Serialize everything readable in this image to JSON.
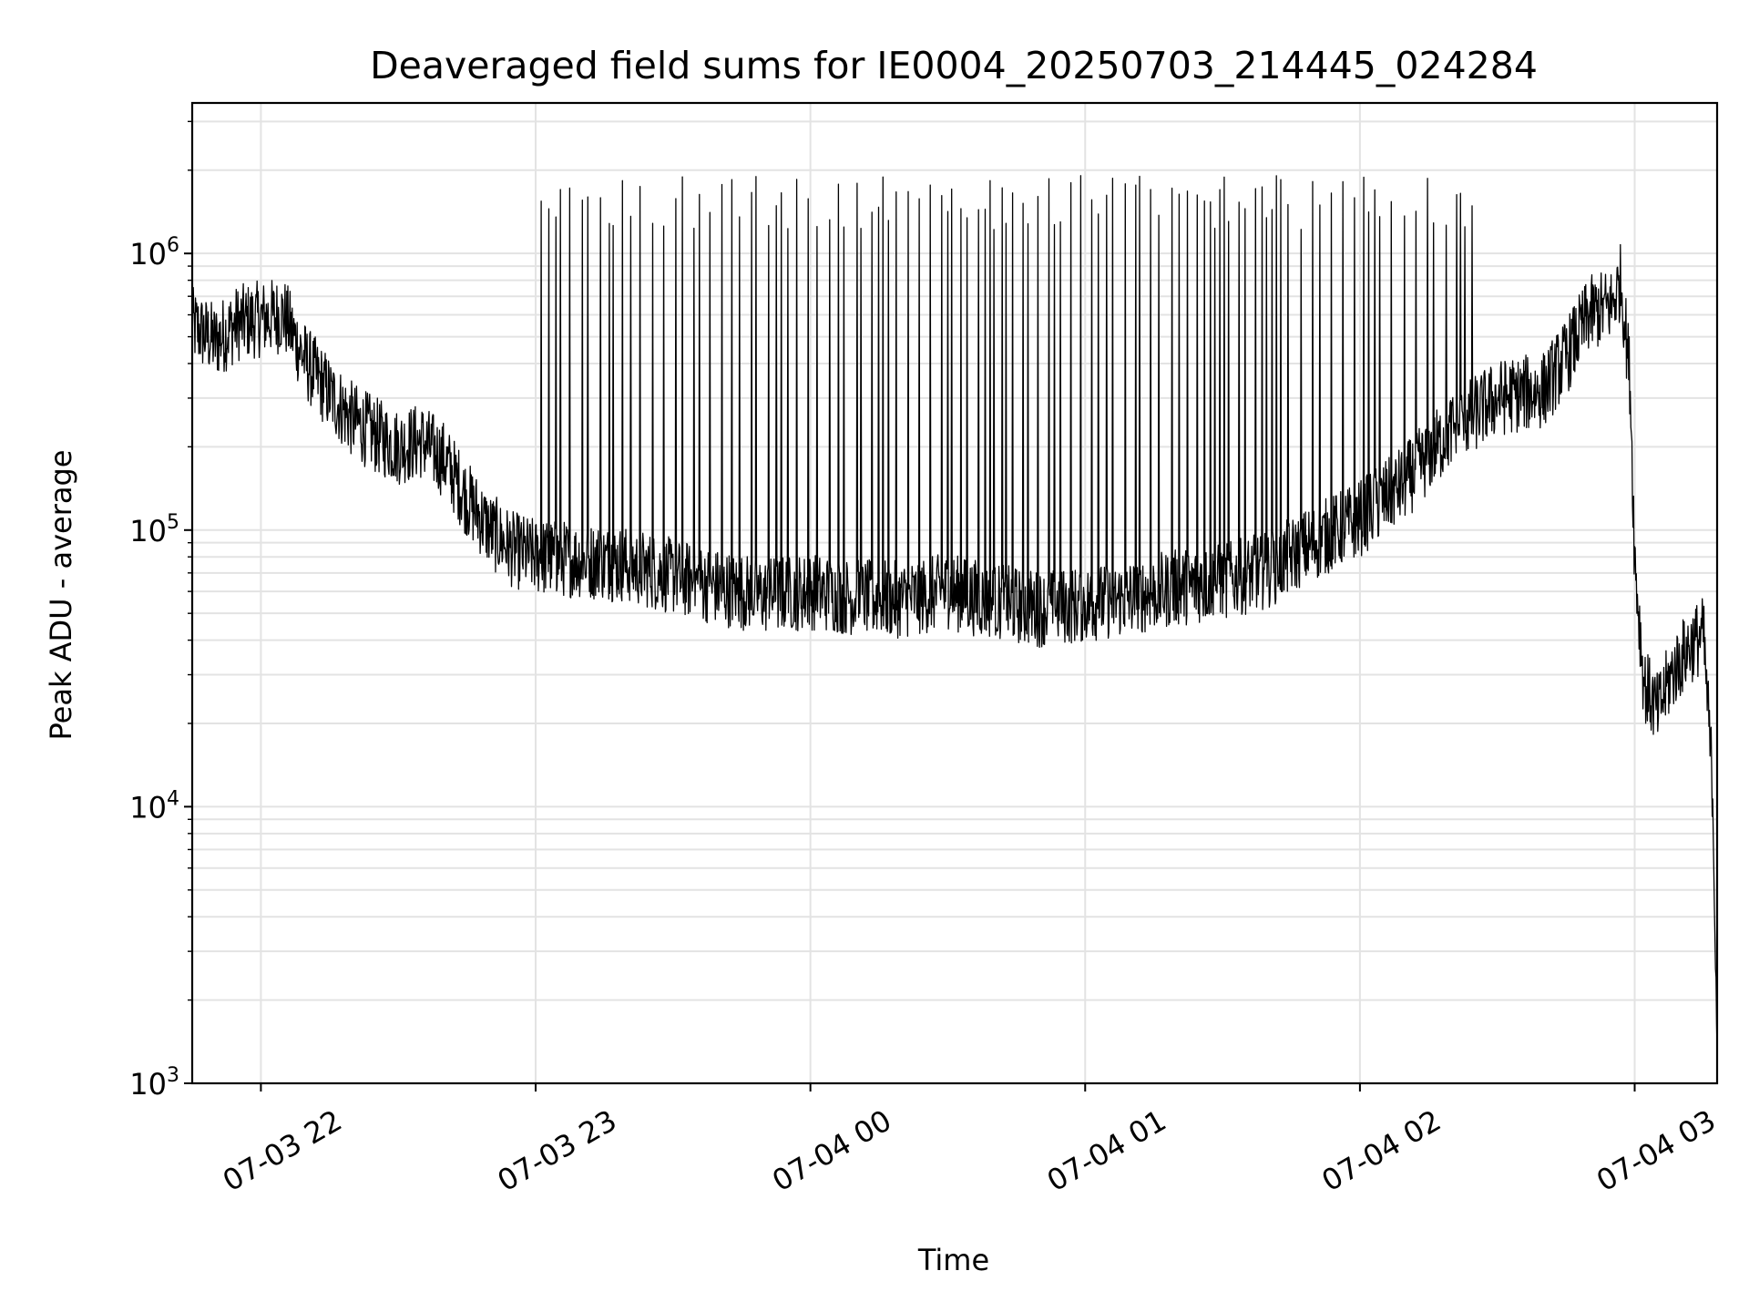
{
  "chart_data": {
    "type": "line",
    "title": "Deaveraged field sums for IE0004_20250703_214445_024284",
    "xlabel": "Time",
    "ylabel": "Peak ADU - average",
    "yscale": "log",
    "ylim": [
      1000,
      3500000
    ],
    "xlim": [
      "07-03 21:45",
      "07-04 03:18"
    ],
    "grid": true,
    "line_color": "#000000",
    "x_ticks": [
      {
        "t": "07-03 22:00",
        "label": "07-03 22"
      },
      {
        "t": "07-03 23:00",
        "label": "07-03 23"
      },
      {
        "t": "07-04 00:00",
        "label": "07-04 00"
      },
      {
        "t": "07-04 01:00",
        "label": "07-04 01"
      },
      {
        "t": "07-04 02:00",
        "label": "07-04 02"
      },
      {
        "t": "07-04 03:00",
        "label": "07-04 03"
      }
    ],
    "y_ticks": [
      {
        "value": 1000,
        "base": "10",
        "exp": "3"
      },
      {
        "value": 10000,
        "base": "10",
        "exp": "4"
      },
      {
        "value": 100000,
        "base": "10",
        "exp": "5"
      },
      {
        "value": 1000000,
        "base": "10",
        "exp": "6"
      }
    ],
    "series": [
      {
        "x": [
          "07-03 21:45",
          "07-03 21:50",
          "07-03 21:55",
          "07-03 22:00",
          "07-03 22:05",
          "07-03 22:10",
          "07-03 22:15",
          "07-03 22:20",
          "07-03 22:25",
          "07-03 22:30",
          "07-03 22:35",
          "07-03 22:40",
          "07-03 22:45",
          "07-03 22:50",
          "07-03 22:55",
          "07-03 23:00",
          "07-03 23:10",
          "07-03 23:20",
          "07-03 23:30",
          "07-03 23:40",
          "07-03 23:50",
          "07-04 00:00",
          "07-04 00:10",
          "07-04 00:20",
          "07-04 00:30",
          "07-04 00:40",
          "07-04 00:50",
          "07-04 01:00",
          "07-04 01:10",
          "07-04 01:20",
          "07-04 01:30",
          "07-04 01:40",
          "07-04 01:50",
          "07-04 02:00",
          "07-04 02:10",
          "07-04 02:20",
          "07-04 02:30",
          "07-04 02:40",
          "07-04 02:45",
          "07-04 02:50",
          "07-04 02:55",
          "07-04 02:57",
          "07-04 02:59",
          "07-04 03:00",
          "07-04 03:02",
          "07-04 03:05",
          "07-04 03:08",
          "07-04 03:12",
          "07-04 03:15",
          "07-04 03:17",
          "07-04 03:18"
        ],
        "y": [
          550000,
          480000,
          560000,
          580000,
          600000,
          400000,
          310000,
          250000,
          220000,
          200000,
          210000,
          180000,
          130000,
          100000,
          85000,
          80000,
          78000,
          75000,
          68000,
          62000,
          58000,
          60000,
          57000,
          56000,
          60000,
          55000,
          52000,
          54000,
          57000,
          62000,
          65000,
          72000,
          90000,
          110000,
          150000,
          230000,
          300000,
          320000,
          420000,
          600000,
          650000,
          800000,
          350000,
          80000,
          28000,
          22000,
          30000,
          38000,
          42000,
          12000,
          1500
        ]
      }
    ],
    "spikes": {
      "start": "07-03 23:00",
      "end": "07-04 02:25",
      "step_minutes": 1.8,
      "typical_peak": 1600000
    }
  }
}
